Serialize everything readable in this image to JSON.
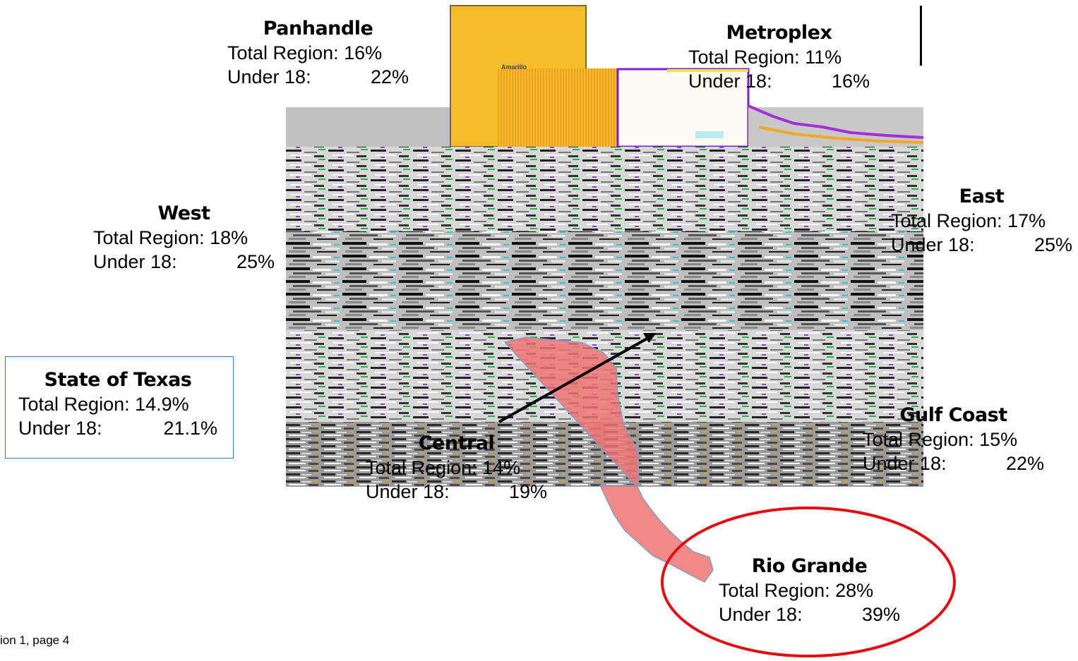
{
  "regions": {
    "panhandle": {
      "name": "Panhandle",
      "total_label": "Total Region:",
      "total": "16%",
      "under_label": "Under 18:",
      "under": "22%"
    },
    "metroplex": {
      "name": "Metroplex",
      "total_label": "Total Region:",
      "total": "11%",
      "under_label": "Under 18:",
      "under": "16%"
    },
    "west": {
      "name": "West",
      "total_label": "Total Region:",
      "total": "18%",
      "under_label": "Under 18:",
      "under": "25%"
    },
    "east": {
      "name": "East",
      "total_label": "Total Region:",
      "total": "17%",
      "under_label": "Under 18:",
      "under": "25%"
    },
    "central": {
      "name": "Central",
      "total_label": "Total Region:",
      "total": "14%",
      "under_label": "Under 18:",
      "under": "19%"
    },
    "gulf_coast": {
      "name": "Gulf Coast",
      "total_label": "Total Region:",
      "total": "15%",
      "under_label": "Under 18:",
      "under": "22%"
    },
    "rio_grande": {
      "name": "Rio Grande",
      "total_label": "Total Region:",
      "total": "28%",
      "under_label": "Under 18:",
      "under": "39%"
    }
  },
  "state": {
    "name": "State of Texas",
    "total_label": "Total Region:",
    "total": "14.9%",
    "under_label": "Under 18:",
    "under": "21.1%"
  },
  "map": {
    "city_label": "Amarillo"
  },
  "footer": {
    "text": "ion 1, page 4"
  },
  "colors": {
    "panhandle_fill": "#f6bd2a",
    "panhandle_stripe": "#f3a825",
    "metroplex_fill": "#fdfaf2",
    "rio_grande_fill": "#f07474",
    "highlight_ellipse": "#e01010",
    "state_box_border": "#4a72b8",
    "top_gray": "#c0c0c0"
  }
}
